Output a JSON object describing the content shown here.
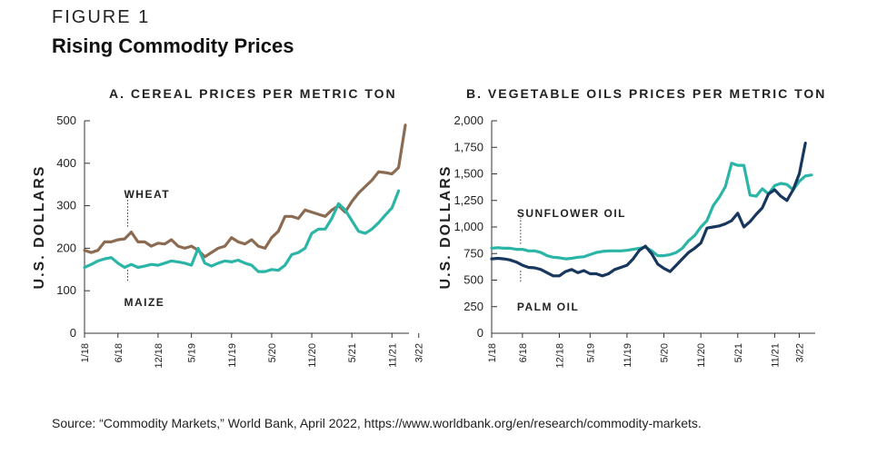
{
  "figure": {
    "label": "FIGURE 1",
    "title": "Rising Commodity Prices",
    "source": "Source: “Commodity Markets,” World Bank, April 2022, https://www.worldbank.org/en/research/commodity-markets."
  },
  "colors": {
    "brown": "#8B6B52",
    "teal": "#2BB5A6",
    "navy": "#17375E",
    "axis": "#333333"
  },
  "chart_data": [
    {
      "type": "line",
      "title": "A. CEREAL PRICES PER METRIC TON",
      "ylabel": "U.S. DOLLARS",
      "xlabel": "",
      "ylim": [
        0,
        500
      ],
      "yticks": [
        "0",
        "100",
        "200",
        "300",
        "400",
        "500"
      ],
      "ytick_values": [
        0,
        100,
        200,
        300,
        400,
        500
      ],
      "xticks": [
        "1/18",
        "6/18",
        "12/18",
        "5/19",
        "11/19",
        "5/20",
        "11/20",
        "5/21",
        "11/21",
        "3/22"
      ],
      "xtick_index": [
        0,
        5,
        11,
        16,
        22,
        28,
        34,
        40,
        46,
        50
      ],
      "grid": false,
      "series": [
        {
          "name": "WHEAT",
          "color": "brown",
          "values": [
            195,
            190,
            195,
            215,
            215,
            220,
            222,
            238,
            215,
            215,
            205,
            212,
            210,
            220,
            205,
            200,
            205,
            195,
            180,
            190,
            200,
            205,
            225,
            215,
            210,
            220,
            205,
            200,
            225,
            240,
            275,
            275,
            270,
            290,
            285,
            280,
            275,
            290,
            300,
            285,
            310,
            330,
            345,
            360,
            380,
            378,
            375,
            390,
            490
          ]
        },
        {
          "name": "MAIZE",
          "color": "teal",
          "values": [
            155,
            162,
            170,
            175,
            178,
            165,
            155,
            162,
            155,
            158,
            162,
            160,
            165,
            170,
            168,
            165,
            160,
            200,
            165,
            158,
            165,
            170,
            168,
            172,
            165,
            160,
            145,
            145,
            150,
            148,
            160,
            185,
            190,
            200,
            235,
            245,
            245,
            270,
            305,
            290,
            265,
            240,
            235,
            245,
            260,
            278,
            295,
            335
          ]
        }
      ],
      "annotations": [
        {
          "text": "WHEAT",
          "series": "WHEAT",
          "index": 7
        },
        {
          "text": "MAIZE",
          "series": "MAIZE",
          "index": 7
        }
      ]
    },
    {
      "type": "line",
      "title": "B. VEGETABLE OILS PRICES PER METRIC TON",
      "ylabel": "U.S. DOLLARS",
      "xlabel": "",
      "ylim": [
        0,
        2000
      ],
      "yticks": [
        "0",
        "250",
        "500",
        "750",
        "1,000",
        "1,250",
        "1,500",
        "1,750",
        "2,000"
      ],
      "ytick_values": [
        0,
        250,
        500,
        750,
        1000,
        1250,
        1500,
        1750,
        2000
      ],
      "xticks": [
        "1/18",
        "6/18",
        "12/18",
        "5/19",
        "11/19",
        "5/20",
        "11/20",
        "5/21",
        "11/21",
        "3/22"
      ],
      "xtick_index": [
        0,
        5,
        11,
        16,
        22,
        28,
        34,
        40,
        46,
        50
      ],
      "grid": false,
      "series": [
        {
          "name": "SUNFLOWER OIL",
          "color": "teal",
          "values": [
            800,
            805,
            800,
            800,
            790,
            790,
            775,
            775,
            760,
            730,
            715,
            710,
            700,
            705,
            715,
            720,
            740,
            760,
            770,
            775,
            775,
            775,
            780,
            790,
            800,
            810,
            775,
            730,
            730,
            740,
            760,
            800,
            870,
            920,
            1000,
            1060,
            1200,
            1280,
            1380,
            1600,
            1580,
            1580,
            1300,
            1290,
            1360,
            1310,
            1390,
            1410,
            1400,
            1350,
            1430,
            1480,
            1490
          ]
        },
        {
          "name": "PALM OIL",
          "color": "navy",
          "values": [
            700,
            705,
            700,
            690,
            670,
            640,
            620,
            615,
            600,
            570,
            540,
            540,
            580,
            600,
            570,
            590,
            560,
            560,
            540,
            560,
            600,
            620,
            640,
            700,
            780,
            820,
            750,
            650,
            610,
            580,
            640,
            700,
            760,
            800,
            850,
            990,
            1000,
            1010,
            1030,
            1060,
            1130,
            1000,
            1050,
            1120,
            1180,
            1310,
            1350,
            1290,
            1250,
            1350,
            1500,
            1790
          ]
        }
      ],
      "annotations": [
        {
          "text": "SUNFLOWER OIL",
          "series": "SUNFLOWER OIL",
          "index": 5
        },
        {
          "text": "PALM OIL",
          "series": "PALM OIL",
          "index": 5
        }
      ]
    }
  ]
}
